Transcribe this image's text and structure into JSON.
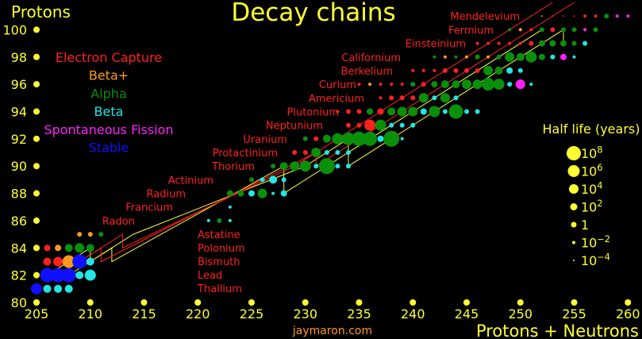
{
  "chart_data": {
    "type": "scatter",
    "title": "Decay chains",
    "xlabel": "Protons + Neutrons",
    "ylabel": "Protons",
    "xlim": [
      205,
      260
    ],
    "ylim": [
      80,
      100
    ],
    "x_ticks": [
      205,
      210,
      215,
      220,
      225,
      230,
      235,
      240,
      245,
      250,
      255,
      260
    ],
    "y_ticks": [
      80,
      82,
      84,
      86,
      88,
      90,
      92,
      94,
      96,
      98,
      100
    ],
    "credit": "jaymaron.com",
    "legend": [
      {
        "label": "Electron Capture",
        "color": "#ff2020"
      },
      {
        "label": "Beta+",
        "color": "#ff9a1f"
      },
      {
        "label": "Alpha",
        "color": "#0a8f0a"
      },
      {
        "label": "Beta",
        "color": "#22e6e6"
      },
      {
        "label": "Spontaneous Fission",
        "color": "#ff22ff"
      },
      {
        "label": "Stable",
        "color": "#1010ff"
      }
    ],
    "half_life_legend": {
      "title": "Half life (years)",
      "entries": [
        "10^8",
        "10^6",
        "10^4",
        "10^2",
        "1",
        "10^-2",
        "10^-4"
      ]
    },
    "element_labels_right": [
      {
        "name": "Mendelevium",
        "z": 101
      },
      {
        "name": "Fermium",
        "z": 100
      },
      {
        "name": "Einsteinium",
        "z": 99
      },
      {
        "name": "Californium",
        "z": 98
      },
      {
        "name": "Berkelium",
        "z": 97
      },
      {
        "name": "Curium",
        "z": 96
      },
      {
        "name": "Americium",
        "z": 95
      },
      {
        "name": "Plutonium",
        "z": 94
      },
      {
        "name": "Neptunium",
        "z": 93
      },
      {
        "name": "Uranium",
        "z": 92
      },
      {
        "name": "Protactinium",
        "z": 91
      },
      {
        "name": "Thorium",
        "z": 90
      },
      {
        "name": "Actinium",
        "z": 89
      },
      {
        "name": "Radium",
        "z": 88
      },
      {
        "name": "Francium",
        "z": 87
      },
      {
        "name": "Radon",
        "z": 86
      }
    ],
    "element_labels_lower": [
      "Astatine",
      "Polonium",
      "Bismuth",
      "Lead",
      "Thallium"
    ],
    "color_codes": {
      "E": "#ff2020",
      "B": "#ff9a1f",
      "A": "#0a8f0a",
      "C": "#22e6e6",
      "F": "#ff22ff",
      "S": "#1010ff"
    },
    "nuclides": [
      [
        205,
        81,
        "S",
        7
      ],
      [
        206,
        81,
        "C",
        5
      ],
      [
        207,
        81,
        "C",
        5
      ],
      [
        208,
        81,
        "C",
        5
      ],
      [
        206,
        82,
        "S",
        9
      ],
      [
        207,
        82,
        "S",
        9
      ],
      [
        208,
        82,
        "S",
        9
      ],
      [
        209,
        82,
        "C",
        5
      ],
      [
        210,
        82,
        "C",
        7
      ],
      [
        206,
        83,
        "E",
        5
      ],
      [
        207,
        83,
        "E",
        6
      ],
      [
        208,
        83,
        "B",
        8
      ],
      [
        209,
        83,
        "S",
        9
      ],
      [
        210,
        83,
        "C",
        5
      ],
      [
        205,
        84,
        "B",
        4
      ],
      [
        206,
        84,
        "E",
        4
      ],
      [
        207,
        84,
        "B",
        4
      ],
      [
        208,
        84,
        "A",
        5
      ],
      [
        209,
        84,
        "A",
        6
      ],
      [
        210,
        84,
        "A",
        5
      ],
      [
        209,
        85,
        "B",
        3
      ],
      [
        210,
        85,
        "B",
        3
      ],
      [
        211,
        85,
        "A",
        3
      ],
      [
        221,
        86,
        "C",
        2
      ],
      [
        222,
        86,
        "A",
        3
      ],
      [
        223,
        86,
        "C",
        2
      ],
      [
        223,
        87,
        "C",
        2
      ],
      [
        223,
        88,
        "A",
        4
      ],
      [
        224,
        88,
        "A",
        4
      ],
      [
        225,
        88,
        "C",
        4
      ],
      [
        226,
        88,
        "A",
        6
      ],
      [
        227,
        88,
        "C",
        2
      ],
      [
        228,
        88,
        "C",
        4
      ],
      [
        225,
        89,
        "A",
        3
      ],
      [
        226,
        89,
        "C",
        3
      ],
      [
        227,
        89,
        "C",
        5
      ],
      [
        228,
        89,
        "C",
        3
      ],
      [
        227,
        90,
        "A",
        3
      ],
      [
        228,
        90,
        "A",
        5
      ],
      [
        229,
        90,
        "A",
        6
      ],
      [
        230,
        90,
        "A",
        7
      ],
      [
        231,
        90,
        "C",
        3
      ],
      [
        232,
        90,
        "A",
        10
      ],
      [
        233,
        90,
        "C",
        3
      ],
      [
        234,
        90,
        "C",
        3
      ],
      [
        229,
        91,
        "E",
        3
      ],
      [
        230,
        91,
        "E",
        3
      ],
      [
        231,
        91,
        "A",
        6
      ],
      [
        232,
        91,
        "C",
        3
      ],
      [
        233,
        91,
        "C",
        3
      ],
      [
        234,
        91,
        "C",
        3
      ],
      [
        230,
        92,
        "A",
        3
      ],
      [
        231,
        92,
        "E",
        3
      ],
      [
        232,
        92,
        "A",
        5
      ],
      [
        233,
        92,
        "A",
        7
      ],
      [
        234,
        92,
        "A",
        8
      ],
      [
        235,
        92,
        "A",
        9
      ],
      [
        236,
        92,
        "A",
        9
      ],
      [
        237,
        92,
        "C",
        4
      ],
      [
        238,
        92,
        "A",
        10
      ],
      [
        239,
        92,
        "C",
        2
      ],
      [
        234,
        93,
        "E",
        3
      ],
      [
        235,
        93,
        "E",
        3
      ],
      [
        236,
        93,
        "E",
        7
      ],
      [
        237,
        93,
        "A",
        7
      ],
      [
        238,
        93,
        "C",
        3
      ],
      [
        239,
        93,
        "C",
        3
      ],
      [
        240,
        93,
        "C",
        3
      ],
      [
        233,
        94,
        "E",
        2
      ],
      [
        234,
        94,
        "E",
        3
      ],
      [
        235,
        94,
        "E",
        3
      ],
      [
        236,
        94,
        "A",
        4
      ],
      [
        237,
        94,
        "E",
        4
      ],
      [
        238,
        94,
        "A",
        5
      ],
      [
        239,
        94,
        "A",
        6
      ],
      [
        240,
        94,
        "A",
        6
      ],
      [
        241,
        94,
        "C",
        4
      ],
      [
        242,
        94,
        "A",
        7
      ],
      [
        243,
        94,
        "C",
        3
      ],
      [
        244,
        94,
        "A",
        9
      ],
      [
        245,
        94,
        "C",
        3
      ],
      [
        246,
        94,
        "C",
        3
      ],
      [
        237,
        95,
        "E",
        2
      ],
      [
        238,
        95,
        "E",
        3
      ],
      [
        239,
        95,
        "E",
        3
      ],
      [
        240,
        95,
        "E",
        3
      ],
      [
        241,
        95,
        "A",
        6
      ],
      [
        242,
        95,
        "C",
        3
      ],
      [
        243,
        95,
        "A",
        6
      ],
      [
        244,
        95,
        "C",
        3
      ],
      [
        235,
        96,
        "E",
        2
      ],
      [
        236,
        96,
        "B",
        2
      ],
      [
        237,
        96,
        "E",
        2
      ],
      [
        238,
        96,
        "E",
        2
      ],
      [
        239,
        96,
        "E",
        2
      ],
      [
        240,
        96,
        "A",
        3
      ],
      [
        241,
        96,
        "E",
        3
      ],
      [
        242,
        96,
        "A",
        4
      ],
      [
        243,
        96,
        "A",
        5
      ],
      [
        244,
        96,
        "A",
        5
      ],
      [
        245,
        96,
        "A",
        6
      ],
      [
        246,
        96,
        "A",
        6
      ],
      [
        247,
        96,
        "A",
        8
      ],
      [
        248,
        96,
        "A",
        7
      ],
      [
        249,
        96,
        "C",
        3
      ],
      [
        250,
        96,
        "F",
        6
      ],
      [
        251,
        96,
        "C",
        2
      ],
      [
        240,
        97,
        "E",
        2
      ],
      [
        241,
        97,
        "E",
        2
      ],
      [
        242,
        97,
        "E",
        2
      ],
      [
        243,
        97,
        "E",
        3
      ],
      [
        244,
        97,
        "E",
        3
      ],
      [
        245,
        97,
        "E",
        3
      ],
      [
        246,
        97,
        "E",
        3
      ],
      [
        247,
        97,
        "A",
        6
      ],
      [
        248,
        97,
        "A",
        5
      ],
      [
        249,
        97,
        "C",
        4
      ],
      [
        250,
        97,
        "C",
        3
      ],
      [
        242,
        98,
        "A",
        2
      ],
      [
        243,
        98,
        "B",
        2
      ],
      [
        244,
        98,
        "A",
        2
      ],
      [
        245,
        98,
        "B",
        2
      ],
      [
        246,
        98,
        "A",
        3
      ],
      [
        247,
        98,
        "B",
        2
      ],
      [
        248,
        98,
        "A",
        3
      ],
      [
        249,
        98,
        "A",
        6
      ],
      [
        250,
        98,
        "A",
        5
      ],
      [
        251,
        98,
        "A",
        7
      ],
      [
        252,
        98,
        "A",
        4
      ],
      [
        253,
        98,
        "C",
        3
      ],
      [
        254,
        98,
        "F",
        4
      ],
      [
        255,
        98,
        "C",
        2
      ],
      [
        246,
        99,
        "E",
        2
      ],
      [
        247,
        99,
        "E",
        2
      ],
      [
        248,
        99,
        "E",
        2
      ],
      [
        249,
        99,
        "E",
        2
      ],
      [
        250,
        99,
        "E",
        2
      ],
      [
        251,
        99,
        "E",
        3
      ],
      [
        252,
        99,
        "A",
        4
      ],
      [
        253,
        99,
        "A",
        4
      ],
      [
        254,
        99,
        "A",
        4
      ],
      [
        255,
        99,
        "A",
        3
      ],
      [
        256,
        99,
        "C",
        3
      ],
      [
        249,
        100,
        "A",
        2
      ],
      [
        250,
        100,
        "B",
        2
      ],
      [
        251,
        100,
        "E",
        2
      ],
      [
        252,
        100,
        "A",
        3
      ],
      [
        253,
        100,
        "E",
        3
      ],
      [
        254,
        100,
        "A",
        3
      ],
      [
        255,
        100,
        "A",
        3
      ],
      [
        256,
        100,
        "F",
        2
      ],
      [
        257,
        100,
        "A",
        3
      ],
      [
        251,
        101,
        "A",
        1
      ],
      [
        252,
        101,
        "B",
        1
      ],
      [
        253,
        101,
        "E",
        1
      ],
      [
        254,
        101,
        "E",
        1
      ],
      [
        255,
        101,
        "E",
        1
      ],
      [
        256,
        101,
        "E",
        2
      ],
      [
        257,
        101,
        "E",
        2
      ],
      [
        258,
        101,
        "A",
        3
      ],
      [
        259,
        101,
        "F",
        2
      ],
      [
        260,
        101,
        "F",
        2
      ]
    ],
    "chains": [
      {
        "color": "#ffff33",
        "points": [
          [
            206,
            82
          ],
          [
            210,
            84
          ],
          [
            210,
            83
          ],
          [
            214,
            85
          ],
          [
            230,
            90
          ],
          [
            234,
            92
          ],
          [
            234,
            91
          ],
          [
            234,
            90
          ],
          [
            238,
            92
          ],
          [
            242,
            94
          ],
          [
            246,
            96
          ],
          [
            250,
            98
          ],
          [
            254,
            100
          ],
          [
            254,
            99
          ]
        ]
      },
      {
        "color": "#ffff33",
        "points": [
          [
            208,
            82
          ],
          [
            212,
            84
          ],
          [
            212,
            83
          ],
          [
            228,
            90
          ],
          [
            228,
            89
          ],
          [
            228,
            88
          ],
          [
            232,
            90
          ],
          [
            236,
            92
          ],
          [
            240,
            94
          ],
          [
            244,
            96
          ],
          [
            248,
            98
          ],
          [
            252,
            100
          ]
        ]
      },
      {
        "color": "#ff2020",
        "points": [
          [
            207,
            82
          ],
          [
            211,
            84
          ],
          [
            211,
            83
          ],
          [
            231,
            91
          ],
          [
            231,
            90
          ],
          [
            235,
            92
          ],
          [
            239,
            94
          ],
          [
            243,
            96
          ],
          [
            247,
            98
          ],
          [
            251,
            100
          ],
          [
            255,
            102
          ]
        ]
      },
      {
        "color": "#ff2020",
        "points": [
          [
            209,
            83
          ],
          [
            213,
            85
          ],
          [
            213,
            84
          ],
          [
            229,
            90
          ],
          [
            233,
            92
          ],
          [
            237,
            94
          ],
          [
            241,
            96
          ],
          [
            245,
            98
          ],
          [
            249,
            100
          ],
          [
            253,
            102
          ]
        ]
      }
    ]
  }
}
